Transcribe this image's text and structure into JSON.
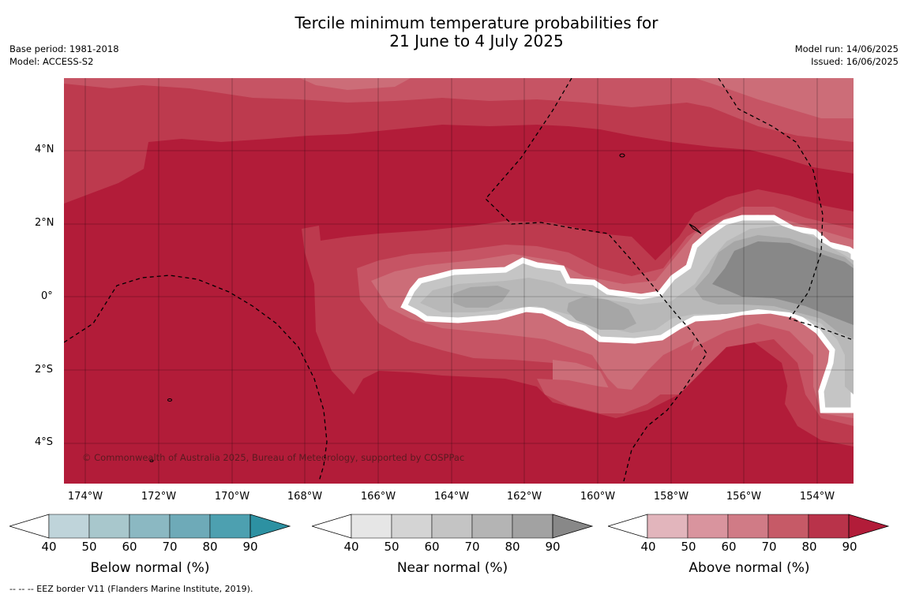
{
  "title": {
    "line1": "Tercile minimum temperature probabilities for",
    "line2": "21 June to 4 July 2025"
  },
  "meta_left": {
    "base_period": "Base period: 1981-2018",
    "model": "Model: ACCESS-S2"
  },
  "meta_right": {
    "model_run": "Model run: 14/06/2025",
    "issued": "Issued: 16/06/2025"
  },
  "map": {
    "lat_labels": [
      "4°N",
      "2°N",
      "0°",
      "2°S",
      "4°S"
    ],
    "lon_labels": [
      "174°W",
      "172°W",
      "170°W",
      "168°W",
      "166°W",
      "164°W",
      "162°W",
      "160°W",
      "158°W",
      "156°W",
      "154°W"
    ],
    "copyright": "© Commonwealth of Australia 2025, Bureau of Meteorology, supported by COSPPac",
    "colors": {
      "above_90": "#b21c39",
      "above_80": "#bd3a4e",
      "above_70": "#c65464",
      "above_60": "#cc6d78",
      "near_60": "#c5c5c5",
      "near_70": "#b8b8b8",
      "near_80": "#a6a6a6",
      "near_90": "#888888"
    }
  },
  "colorbars": [
    {
      "title": "Below normal (%)",
      "ticks": [
        "40",
        "50",
        "60",
        "70",
        "80",
        "90"
      ],
      "colors": [
        "#bfd4da",
        "#a8c7cc",
        "#8bb8c2",
        "#6eaab8",
        "#4da0b0",
        "#2d91a2"
      ]
    },
    {
      "title": "Near normal (%)",
      "ticks": [
        "40",
        "50",
        "60",
        "70",
        "80",
        "90"
      ],
      "colors": [
        "#e6e6e6",
        "#d4d4d4",
        "#c4c4c4",
        "#b4b4b4",
        "#a2a2a2",
        "#888888"
      ]
    },
    {
      "title": "Above normal (%)",
      "ticks": [
        "40",
        "50",
        "60",
        "70",
        "80",
        "90"
      ],
      "colors": [
        "#e2b5bc",
        "#d9949e",
        "#d07b86",
        "#c65a67",
        "#b9334a",
        "#b21c39"
      ]
    }
  ],
  "footer": "--  --  -- EEZ border V11 (Flanders Marine Institute, 2019)."
}
